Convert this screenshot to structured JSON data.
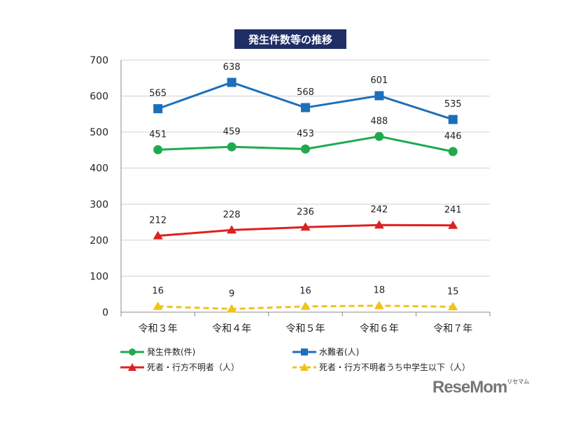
{
  "chart_data": {
    "type": "line",
    "title": "発生件数等の推移",
    "categories": [
      "令和３年",
      "令和４年",
      "令和５年",
      "令和６年",
      "令和７年"
    ],
    "ylim": [
      0,
      700
    ],
    "yticks": [
      0,
      100,
      200,
      300,
      400,
      500,
      600,
      700
    ],
    "grid": true,
    "legend_position": "bottom",
    "series": [
      {
        "name": "発生件数(件)",
        "values": [
          451,
          459,
          453,
          488,
          446
        ],
        "color": "#1faa4f",
        "marker": "circle",
        "dashed": false
      },
      {
        "name": "水難者(人)",
        "values": [
          565,
          638,
          568,
          601,
          535
        ],
        "color": "#1c6fba",
        "marker": "square",
        "dashed": false
      },
      {
        "name": "死者・行方不明者（人）",
        "values": [
          212,
          228,
          236,
          242,
          241
        ],
        "color": "#e02020",
        "marker": "triangle",
        "dashed": false
      },
      {
        "name": "死者・行方不明者うち中学生以下（人）",
        "values": [
          16,
          9,
          16,
          18,
          15
        ],
        "color": "#f2c21b",
        "marker": "triangle",
        "dashed": true
      }
    ]
  },
  "watermark": {
    "text": "ReseMom",
    "subtext": "リセマム"
  }
}
